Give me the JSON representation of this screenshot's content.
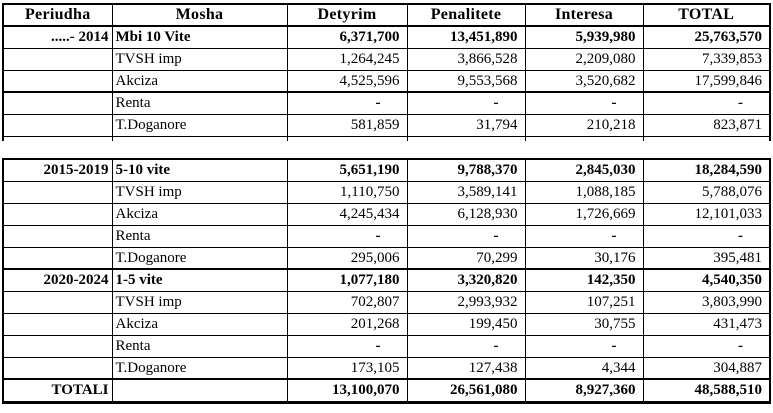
{
  "table": {
    "headers": [
      "Periudha",
      "Mosha",
      "Detyrim",
      "Penalitete",
      "Interesa",
      "TOTAL"
    ],
    "upper": {
      "rows": [
        [
          ".....- 2014",
          "Mbi 10 Vite",
          "6,371,700",
          "13,451,890",
          "5,939,980",
          "25,763,570"
        ],
        [
          "",
          "TVSH imp",
          "1,264,245",
          "3,866,528",
          "2,209,080",
          "7,339,853"
        ],
        [
          "",
          "Akciza",
          "4,525,596",
          "9,553,568",
          "3,520,682",
          "17,599,846"
        ],
        [
          "",
          "Renta",
          "-",
          "-",
          "-",
          "-"
        ],
        [
          "",
          "T.Doganore",
          "581,859",
          "31,794",
          "210,218",
          "823,871"
        ]
      ]
    },
    "lower": {
      "rows": [
        [
          "2015-2019",
          "5-10 vite",
          "5,651,190",
          "9,788,370",
          "2,845,030",
          "18,284,590"
        ],
        [
          "",
          "TVSH imp",
          "1,110,750",
          "3,589,141",
          "1,088,185",
          "5,788,076"
        ],
        [
          "",
          "Akciza",
          "4,245,434",
          "6,128,930",
          "1,726,669",
          "12,101,033"
        ],
        [
          "",
          "Renta",
          "-",
          "-",
          "-",
          "-"
        ],
        [
          "",
          "T.Doganore",
          "295,006",
          "70,299",
          "30,176",
          "395,481"
        ],
        [
          "2020-2024",
          "1-5 vite",
          "1,077,180",
          "3,320,820",
          "142,350",
          "4,540,350"
        ],
        [
          "",
          "TVSH imp",
          "702,807",
          "2,993,932",
          "107,251",
          "3,803,990"
        ],
        [
          "",
          "Akciza",
          "201,268",
          "199,450",
          "30,755",
          "431,473"
        ],
        [
          "",
          "Renta",
          "-",
          "-",
          "-",
          "-"
        ],
        [
          "",
          "T.Doganore",
          "173,105",
          "127,438",
          "4,344",
          "304,887"
        ],
        [
          "TOTALI",
          "",
          "13,100,070",
          "26,561,080",
          "8,927,360",
          "48,588,510"
        ]
      ]
    },
    "colors": {
      "border": "#000000",
      "text": "#000000",
      "background": "#ffffff"
    }
  }
}
